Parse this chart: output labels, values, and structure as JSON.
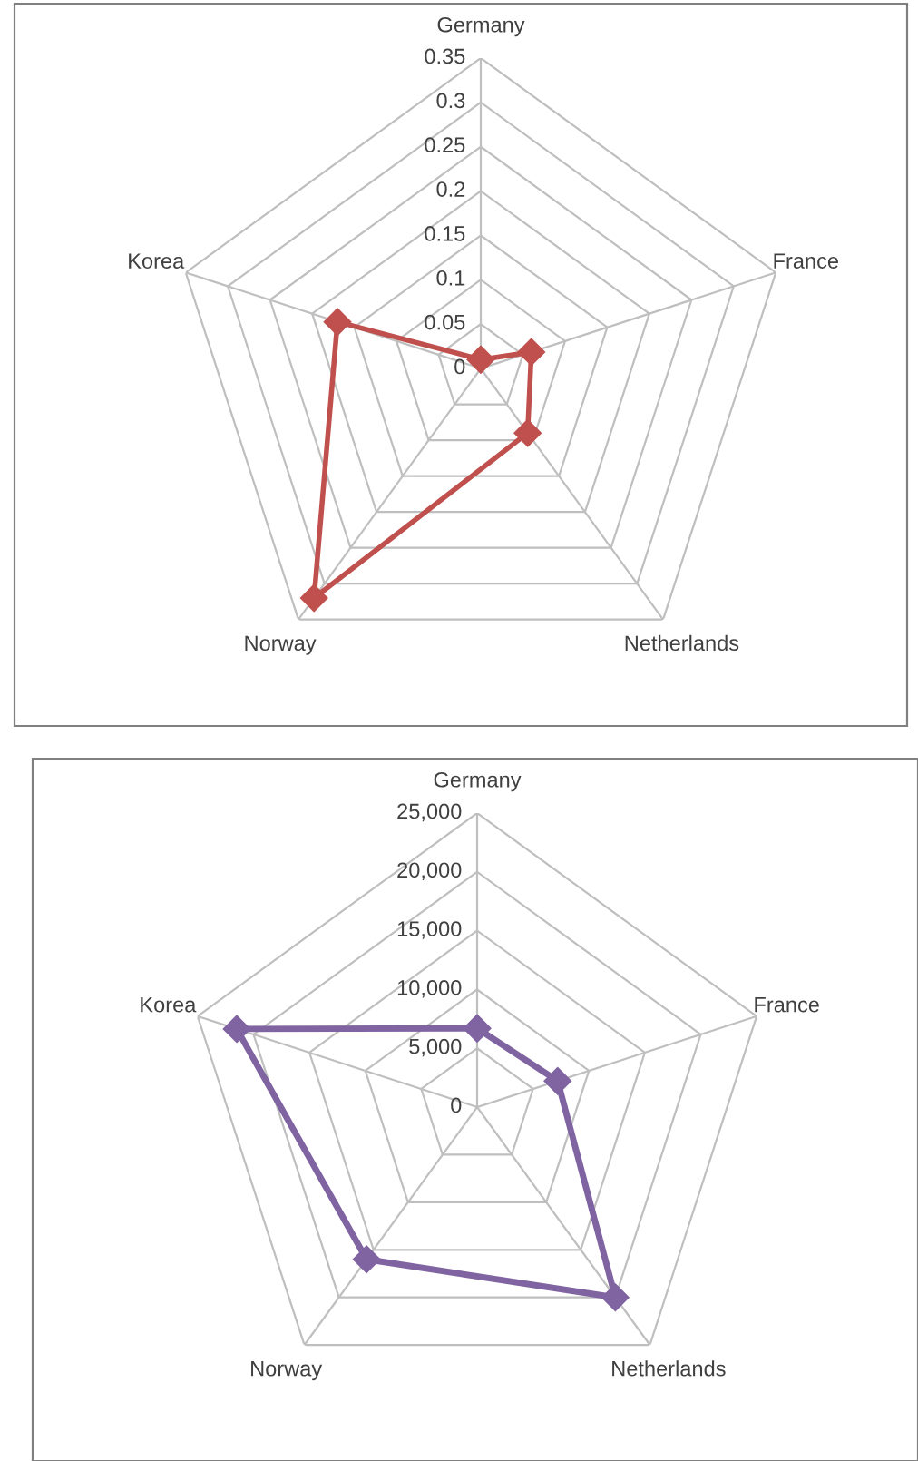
{
  "chart_data": [
    {
      "type": "radar",
      "categories": [
        "Germany",
        "France",
        "Netherlands",
        "Norway",
        "Korea"
      ],
      "series": [
        {
          "color": "#c0504d",
          "values": [
            0.01,
            0.06,
            0.09,
            0.32,
            0.17
          ]
        }
      ],
      "ylim": [
        0,
        0.35
      ],
      "yticks": [
        0,
        0.05,
        0.1,
        0.15,
        0.2,
        0.25,
        0.3,
        0.35
      ],
      "grid": true,
      "marker": "diamond",
      "line_style": "solid"
    },
    {
      "type": "radar",
      "categories": [
        "Germany",
        "France",
        "Netherlands",
        "Norway",
        "Korea"
      ],
      "series": [
        {
          "color": "#8064a2",
          "values": [
            6700,
            7200,
            20000,
            16000,
            21500
          ]
        }
      ],
      "ylim": [
        0,
        25000
      ],
      "yticks": [
        {
          "value": 0,
          "label": "0"
        },
        {
          "value": 5000,
          "label": "5,000"
        },
        {
          "value": 10000,
          "label": "10,000"
        },
        {
          "value": 15000,
          "label": "15,000"
        },
        {
          "value": 20000,
          "label": "20,000"
        },
        {
          "value": 25000,
          "label": "25,000"
        }
      ],
      "grid": true,
      "marker": "diamond",
      "line_style": "solid"
    }
  ]
}
